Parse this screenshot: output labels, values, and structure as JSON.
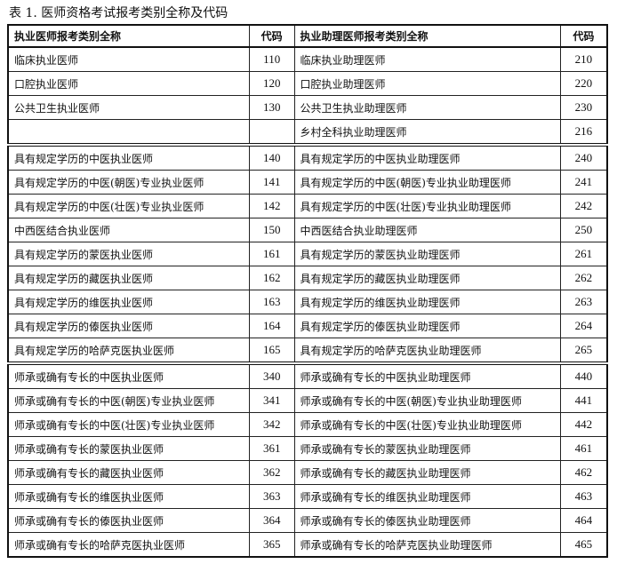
{
  "title": "表 1. 医师资格考试报考类别全称及代码",
  "headers": [
    "执业医师报考类别全称",
    "代码",
    "执业助理医师报考类别全称",
    "代码"
  ],
  "groups": [
    [
      [
        "临床执业医师",
        "110",
        "临床执业助理医师",
        "210"
      ],
      [
        "口腔执业医师",
        "120",
        "口腔执业助理医师",
        "220"
      ],
      [
        "公共卫生执业医师",
        "130",
        "公共卫生执业助理医师",
        "230"
      ],
      [
        "",
        "",
        "乡村全科执业助理医师",
        "216"
      ]
    ],
    [
      [
        "具有规定学历的中医执业医师",
        "140",
        "具有规定学历的中医执业助理医师",
        "240"
      ],
      [
        "具有规定学历的中医(朝医)专业执业医师",
        "141",
        "具有规定学历的中医(朝医)专业执业助理医师",
        "241"
      ],
      [
        "具有规定学历的中医(壮医)专业执业医师",
        "142",
        "具有规定学历的中医(壮医)专业执业助理医师",
        "242"
      ],
      [
        "中西医结合执业医师",
        "150",
        "中西医结合执业助理医师",
        "250"
      ],
      [
        "具有规定学历的蒙医执业医师",
        "161",
        "具有规定学历的蒙医执业助理医师",
        "261"
      ],
      [
        "具有规定学历的藏医执业医师",
        "162",
        "具有规定学历的藏医执业助理医师",
        "262"
      ],
      [
        "具有规定学历的维医执业医师",
        "163",
        "具有规定学历的维医执业助理医师",
        "263"
      ],
      [
        "具有规定学历的傣医执业医师",
        "164",
        "具有规定学历的傣医执业助理医师",
        "264"
      ],
      [
        "具有规定学历的哈萨克医执业医师",
        "165",
        "具有规定学历的哈萨克医执业助理医师",
        "265"
      ]
    ],
    [
      [
        "师承或确有专长的中医执业医师",
        "340",
        "师承或确有专长的中医执业助理医师",
        "440"
      ],
      [
        "师承或确有专长的中医(朝医)专业执业医师",
        "341",
        "师承或确有专长的中医(朝医)专业执业助理医师",
        "441"
      ],
      [
        "师承或确有专长的中医(壮医)专业执业医师",
        "342",
        "师承或确有专长的中医(壮医)专业执业助理医师",
        "442"
      ],
      [
        "师承或确有专长的蒙医执业医师",
        "361",
        "师承或确有专长的蒙医执业助理医师",
        "461"
      ],
      [
        "师承或确有专长的藏医执业医师",
        "362",
        "师承或确有专长的藏医执业助理医师",
        "462"
      ],
      [
        "师承或确有专长的维医执业医师",
        "363",
        "师承或确有专长的维医执业助理医师",
        "463"
      ],
      [
        "师承或确有专长的傣医执业医师",
        "364",
        "师承或确有专长的傣医执业助理医师",
        "464"
      ],
      [
        "师承或确有专长的哈萨克医执业医师",
        "365",
        "师承或确有专长的哈萨克医执业助理医师",
        "465"
      ]
    ]
  ]
}
